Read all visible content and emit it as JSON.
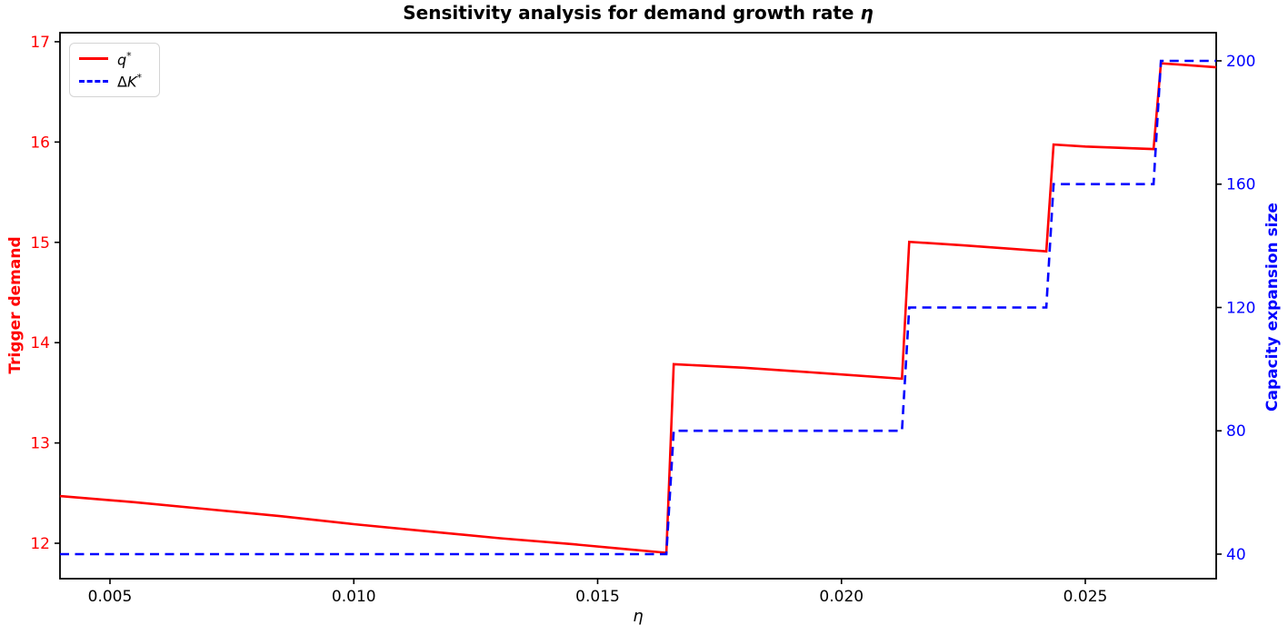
{
  "header": {
    "title_main": "Sensitivity analysis for demand growth rate ",
    "title_eta": "η"
  },
  "chart_data": {
    "type": "line",
    "title": "Sensitivity analysis for demand growth rate η",
    "x_axis": {
      "label": "η",
      "lim": [
        0.003975,
        0.027684
      ],
      "ticks": [
        0.005,
        0.01,
        0.015,
        0.02,
        0.025
      ],
      "tick_labels": [
        "0.005",
        "0.010",
        "0.015",
        "0.020",
        "0.025"
      ],
      "tick_label_color": "#000000"
    },
    "y_left": {
      "label": "Trigger demand",
      "color": "#ff0000",
      "lim": [
        11.647,
        17.09
      ],
      "ticks": [
        12,
        13,
        14,
        15,
        16,
        17
      ],
      "tick_labels": [
        "12",
        "13",
        "14",
        "15",
        "16",
        "17"
      ]
    },
    "y_right": {
      "label": "Capacity expansion size",
      "color": "#0000ff",
      "lim": [
        32.04,
        209.13
      ],
      "ticks": [
        40,
        80,
        120,
        160,
        200
      ],
      "tick_labels": [
        "40",
        "80",
        "120",
        "160",
        "200"
      ]
    },
    "legend": {
      "position": "upper-left"
    },
    "grid": false,
    "series": [
      {
        "name": "q*",
        "label_pre": "",
        "label_base": "q",
        "label_sup": "*",
        "axis": "left",
        "color": "#ff0000",
        "dash": null,
        "line_width": 2.6,
        "points": [
          [
            0.003975,
            12.47
          ],
          [
            0.0055,
            12.41
          ],
          [
            0.007,
            12.34
          ],
          [
            0.0085,
            12.27
          ],
          [
            0.01,
            12.19
          ],
          [
            0.0115,
            12.12
          ],
          [
            0.013,
            12.05
          ],
          [
            0.0145,
            11.99
          ],
          [
            0.0155,
            11.945
          ],
          [
            0.01641,
            11.905
          ],
          [
            0.01656,
            13.785
          ],
          [
            0.018,
            13.75
          ],
          [
            0.0195,
            13.7
          ],
          [
            0.02124,
            13.64
          ],
          [
            0.02139,
            15.005
          ],
          [
            0.0225,
            14.97
          ],
          [
            0.0235,
            14.935
          ],
          [
            0.0242,
            14.91
          ],
          [
            0.02435,
            15.975
          ],
          [
            0.025,
            15.955
          ],
          [
            0.0264,
            15.93
          ],
          [
            0.02655,
            16.785
          ],
          [
            0.027,
            16.77
          ],
          [
            0.027684,
            16.745
          ]
        ]
      },
      {
        "name": "ΔK*",
        "label_pre": "Δ",
        "label_base": "K",
        "label_sup": "*",
        "axis": "right",
        "color": "#0000ff",
        "dash": [
          10,
          6.5
        ],
        "line_width": 2.6,
        "points": [
          [
            0.003975,
            40
          ],
          [
            0.01641,
            40
          ],
          [
            0.01656,
            80
          ],
          [
            0.02124,
            80
          ],
          [
            0.02139,
            120
          ],
          [
            0.0242,
            120
          ],
          [
            0.02435,
            160
          ],
          [
            0.0264,
            160
          ],
          [
            0.02655,
            200
          ],
          [
            0.027684,
            200
          ]
        ]
      }
    ]
  }
}
